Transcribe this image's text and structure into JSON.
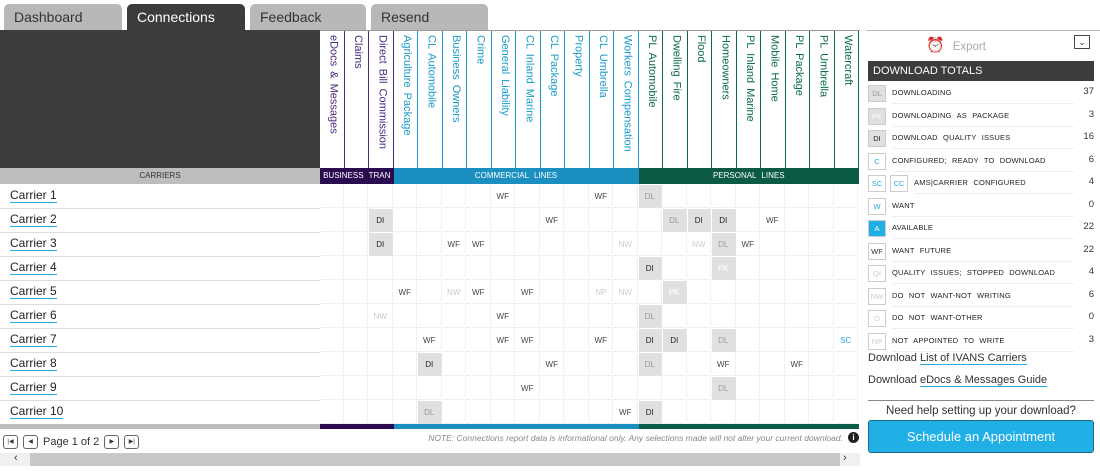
{
  "tabs": [
    {
      "label": "Dashboard"
    },
    {
      "label": "Connections"
    },
    {
      "label": "Feedback"
    },
    {
      "label": "Resend"
    }
  ],
  "active_tab": "Connections",
  "carriers_label": "CARRIERS",
  "groups": [
    {
      "label": "BUSINESS TRAN",
      "color": "#2a0b50",
      "text_color": "#4a2a80",
      "cols": 3
    },
    {
      "label": "COMMERCIAL LINES",
      "color": "#1a8fc0",
      "text_color": "#1a9ac8",
      "cols": 10
    },
    {
      "label": "PERSONAL LINES",
      "color": "#0a5a45",
      "text_color": "#0a6a50",
      "cols": 9
    }
  ],
  "columns": [
    "eDocs & Messages",
    "Claims",
    "Direct Bill Commission",
    "Agriculture Package",
    "CL Automobile",
    "Business Owners",
    "Crime",
    "General Liability",
    "CL Inland Marine",
    "CL Package",
    "Property",
    "CL Umbrella",
    "Workers Compensation",
    "PL Automobile",
    "Dwelling Fire",
    "Flood",
    "Homeowners",
    "PL Inland Marine",
    "Mobile Home",
    "PL Package",
    "PL Umbrella",
    "Watercraft"
  ],
  "rows": [
    {
      "carrier": "Carrier 1",
      "cells": [
        "",
        "",
        "",
        "",
        "",
        "",
        "",
        "WF",
        "",
        "",
        "",
        "WF",
        "",
        "DL",
        "",
        "",
        "",
        "",
        "",
        "",
        "",
        ""
      ]
    },
    {
      "carrier": "Carrier 2",
      "cells": [
        "",
        "",
        "DI",
        "",
        "",
        "",
        "",
        "",
        "",
        "WF",
        "",
        "",
        "",
        "",
        "DL",
        "DI",
        "DI",
        "",
        "WF",
        "",
        "",
        ""
      ]
    },
    {
      "carrier": "Carrier 3",
      "cells": [
        "",
        "",
        "DI",
        "",
        "",
        "WF",
        "WF",
        "",
        "",
        "",
        "",
        "",
        "NW",
        "",
        "",
        "NW",
        "DL",
        "WF",
        "",
        "",
        "",
        ""
      ]
    },
    {
      "carrier": "Carrier 4",
      "cells": [
        "",
        "",
        "",
        "",
        "",
        "",
        "",
        "",
        "",
        "",
        "",
        "",
        "",
        "DI",
        "",
        "",
        "PK",
        "",
        "",
        "",
        "",
        ""
      ]
    },
    {
      "carrier": "Carrier 5",
      "cells": [
        "",
        "",
        "",
        "WF",
        "",
        "NW",
        "WF",
        "",
        "WF",
        "",
        "",
        "NP",
        "NW",
        "",
        "PK",
        "",
        "",
        "",
        "",
        "",
        "",
        ""
      ]
    },
    {
      "carrier": "Carrier 6",
      "cells": [
        "",
        "",
        "NW",
        "",
        "",
        "",
        "",
        "WF",
        "",
        "",
        "",
        "",
        "",
        "DL",
        "",
        "",
        "",
        "",
        "",
        "",
        "",
        ""
      ]
    },
    {
      "carrier": "Carrier 7",
      "cells": [
        "",
        "",
        "",
        "",
        "WF",
        "",
        "",
        "WF",
        "WF",
        "",
        "",
        "WF",
        "",
        "DI",
        "DI",
        "",
        "DL",
        "",
        "",
        "",
        "",
        "SC"
      ]
    },
    {
      "carrier": "Carrier 8",
      "cells": [
        "",
        "",
        "",
        "",
        "DI",
        "",
        "",
        "",
        "",
        "WF",
        "",
        "",
        "",
        "DL",
        "",
        "",
        "WF",
        "",
        "",
        "WF",
        "",
        ""
      ]
    },
    {
      "carrier": "Carrier 9",
      "cells": [
        "",
        "",
        "",
        "",
        "",
        "",
        "",
        "",
        "WF",
        "",
        "",
        "",
        "",
        "",
        "",
        "",
        "DL",
        "",
        "",
        "",
        "",
        ""
      ]
    },
    {
      "carrier": "Carrier 10",
      "cells": [
        "",
        "",
        "",
        "",
        "DL",
        "",
        "",
        "",
        "",
        "",
        "",
        "",
        "WF",
        "DI",
        "",
        "",
        "",
        "",
        "",
        "",
        "",
        ""
      ]
    }
  ],
  "pager": {
    "text": "Page 1 of 2"
  },
  "note": "NOTE: Connections report data is informational only. Any selections made will not alter your current download.",
  "sidebar": {
    "export_label": "Export",
    "totals_title": "DOWNLOAD TOTALS",
    "totals": [
      {
        "codes": [
          "DL"
        ],
        "label": "DOWNLOADING",
        "count": "37"
      },
      {
        "codes": [
          "PK"
        ],
        "label": "DOWNLOADING AS PACKAGE",
        "count": "3"
      },
      {
        "codes": [
          "DI"
        ],
        "label": "DOWNLOAD QUALITY ISSUES",
        "count": "16"
      },
      {
        "codes": [
          "C"
        ],
        "label": "CONFIGURED; READY TO DOWNLOAD",
        "count": "6"
      },
      {
        "codes": [
          "SC",
          "CC"
        ],
        "label": "AMS|CARRIER CONFIGURED",
        "count": "4"
      },
      {
        "codes": [
          "W"
        ],
        "label": "WANT",
        "count": "0"
      },
      {
        "codes": [
          "A"
        ],
        "label": "AVAILABLE",
        "count": "22"
      },
      {
        "codes": [
          "WF"
        ],
        "label": "WANT FUTURE",
        "count": "22"
      },
      {
        "codes": [
          "QI"
        ],
        "label": "QUALITY ISSUES; STOPPED DOWNLOAD",
        "count": "4"
      },
      {
        "codes": [
          "NW"
        ],
        "label": "DO NOT WANT-NOT WRITING",
        "count": "6"
      },
      {
        "codes": [
          "O"
        ],
        "label": "DO NOT WANT-OTHER",
        "count": "0"
      },
      {
        "codes": [
          "NP"
        ],
        "label": "NOT APPOINTED TO WRITE",
        "count": "3"
      }
    ],
    "download_prefix": "Download",
    "link1": "List of IVANS Carriers",
    "link2": "eDocs & Messages Guide",
    "help_text": "Need help setting up your download?",
    "schedule_button": "Schedule an Appointment"
  }
}
